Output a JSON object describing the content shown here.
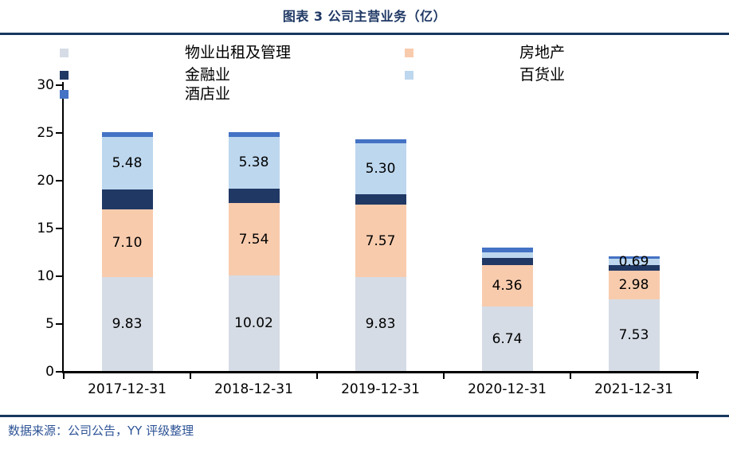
{
  "header": {
    "title": "图表 3 公司主营业务（亿）"
  },
  "footer": {
    "source": "数据来源：公司公告，YY 评级整理"
  },
  "style": {
    "accent_dark_blue": "#17375e",
    "title_color": "#1f3864",
    "source_color": "#2e5496",
    "axis_color": "#000000"
  },
  "chart_data": {
    "type": "bar",
    "subtype": "stacked",
    "title": "图表 3 公司主营业务（亿）",
    "unit": "亿",
    "categories": [
      "2017-12-31",
      "2018-12-31",
      "2019-12-31",
      "2020-12-31",
      "2021-12-31"
    ],
    "series": [
      {
        "name": "物业出租及管理",
        "color": "#d6dce5",
        "values": [
          9.83,
          10.02,
          9.83,
          6.74,
          7.53
        ],
        "labels": [
          "9.83",
          "10.02",
          "9.83",
          "6.74",
          "7.53"
        ]
      },
      {
        "name": "房地产",
        "color": "#f8cbad",
        "values": [
          7.1,
          7.54,
          7.57,
          4.36,
          2.98
        ],
        "labels": [
          "7.10",
          "7.54",
          "7.57",
          "4.36",
          "2.98"
        ]
      },
      {
        "name": "金融业",
        "color": "#203864",
        "values": [
          2.1,
          1.55,
          1.1,
          0.7,
          0.55
        ],
        "labels": [
          null,
          null,
          null,
          null,
          null
        ]
      },
      {
        "name": "百货业",
        "color": "#bdd7ee",
        "values": [
          5.48,
          5.38,
          5.3,
          0.6,
          0.69
        ],
        "labels": [
          "5.48",
          "5.38",
          "5.30",
          null,
          "0.69"
        ]
      },
      {
        "name": "酒店业",
        "color": "#4472c4",
        "values": [
          0.5,
          0.5,
          0.45,
          0.55,
          0.28
        ],
        "labels": [
          null,
          null,
          null,
          null,
          null
        ]
      }
    ],
    "ylim": [
      0,
      30
    ],
    "yticks": [
      0,
      5,
      10,
      15,
      20,
      25,
      30
    ],
    "grid": false,
    "legend_position": "top-left, two columns, markers far from labels"
  }
}
